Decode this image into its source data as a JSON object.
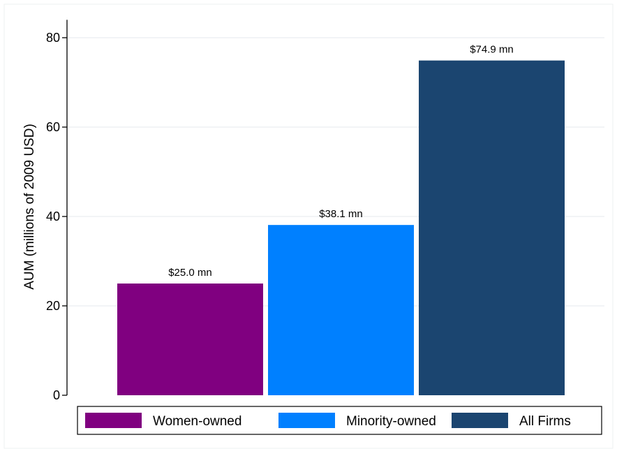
{
  "chart_data": {
    "type": "bar",
    "title": "",
    "xlabel": "",
    "ylabel": "AUM (millions of 2009 USD)",
    "ylim": [
      0,
      84
    ],
    "yticks": [
      0,
      20,
      40,
      60,
      80
    ],
    "grid": true,
    "legend_position": "bottom",
    "categories": [
      "Women-owned",
      "Minority-owned",
      "All Firms"
    ],
    "values": [
      25.0,
      38.1,
      74.9
    ],
    "data_labels": [
      "$25.0 mn",
      "$38.1 mn",
      "$74.9 mn"
    ],
    "colors": [
      "#800080",
      "#0080ff",
      "#1b4570"
    ]
  }
}
